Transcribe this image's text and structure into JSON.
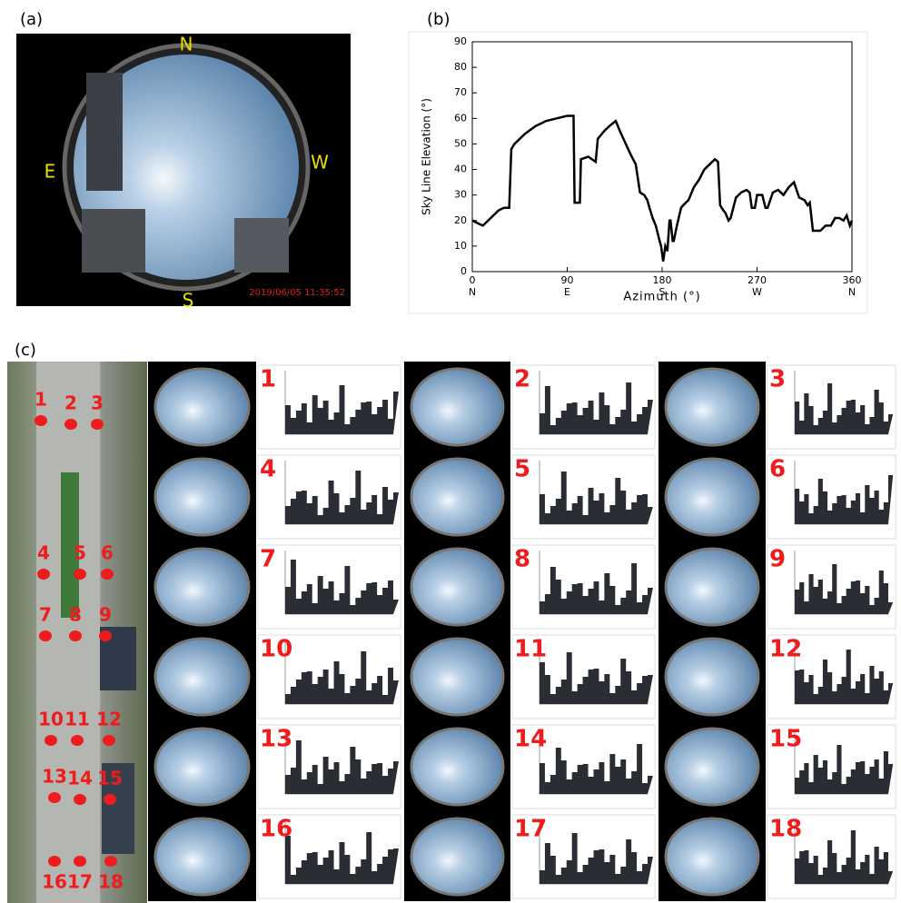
{
  "panels": {
    "a": "(a)",
    "b": "(b)",
    "c": "(c)"
  },
  "fisheye": {
    "north": "N",
    "east": "E",
    "west": "W",
    "south": "S",
    "timestamp": "2019/06/05 11:35:52"
  },
  "chart_data": {
    "type": "line",
    "ylabel": "Sky Line Elevation (°)",
    "xlabel": "Azimuth (°)",
    "color": "#000000",
    "x": [
      0,
      5,
      10,
      15,
      20,
      25,
      30,
      35,
      37,
      40,
      50,
      60,
      70,
      80,
      90,
      96,
      97,
      100,
      102,
      103,
      110,
      117,
      119,
      125,
      130,
      136,
      140,
      150,
      155,
      159,
      163,
      166,
      168,
      171,
      174,
      177,
      179,
      181,
      183,
      185,
      187,
      188,
      190,
      191,
      194,
      198,
      200,
      205,
      210,
      215,
      220,
      225,
      230,
      233,
      235,
      238,
      240,
      243,
      245,
      250,
      255,
      260,
      263,
      265,
      268,
      270,
      275,
      278,
      280,
      285,
      290,
      295,
      300,
      305,
      310,
      315,
      318,
      320,
      323,
      330,
      335,
      340,
      344,
      348,
      352,
      355,
      358,
      360
    ],
    "values": [
      20,
      19,
      18,
      20,
      22,
      24,
      25,
      25,
      48,
      50,
      54,
      57,
      59,
      60,
      61,
      61,
      27,
      27,
      27,
      44,
      45,
      43,
      52,
      55,
      57,
      59,
      55,
      46,
      42,
      31,
      30,
      28,
      25,
      21,
      18,
      13,
      10,
      4,
      10,
      8,
      20,
      20,
      12,
      12,
      18,
      25,
      26,
      28,
      33,
      36,
      40,
      42,
      44,
      43,
      26,
      24,
      23,
      20,
      21,
      29,
      31,
      32,
      31,
      25,
      25,
      30,
      30,
      25,
      25,
      31,
      32,
      30,
      33,
      35,
      29,
      28,
      26,
      27,
      16,
      16,
      18,
      18,
      21,
      21,
      20,
      22,
      18,
      20
    ],
    "xlim": [
      0,
      360
    ],
    "ylim": [
      0,
      90
    ],
    "xticks": [
      0,
      90,
      180,
      270,
      360
    ],
    "yticks": [
      0,
      10,
      20,
      30,
      40,
      50,
      60,
      70,
      80,
      90
    ],
    "direction_labels": [
      "N",
      "E",
      "S",
      "W",
      "N"
    ]
  },
  "map_points": [
    "1",
    "2",
    "3",
    "4",
    "5",
    "6",
    "7",
    "8",
    "9",
    "10",
    "11",
    "12",
    "13",
    "14",
    "15",
    "16",
    "17",
    "18"
  ],
  "thumbnail_labels": [
    "1",
    "2",
    "3",
    "4",
    "5",
    "6",
    "7",
    "8",
    "9",
    "10",
    "11",
    "12",
    "13",
    "14",
    "15",
    "16",
    "17",
    "18"
  ]
}
